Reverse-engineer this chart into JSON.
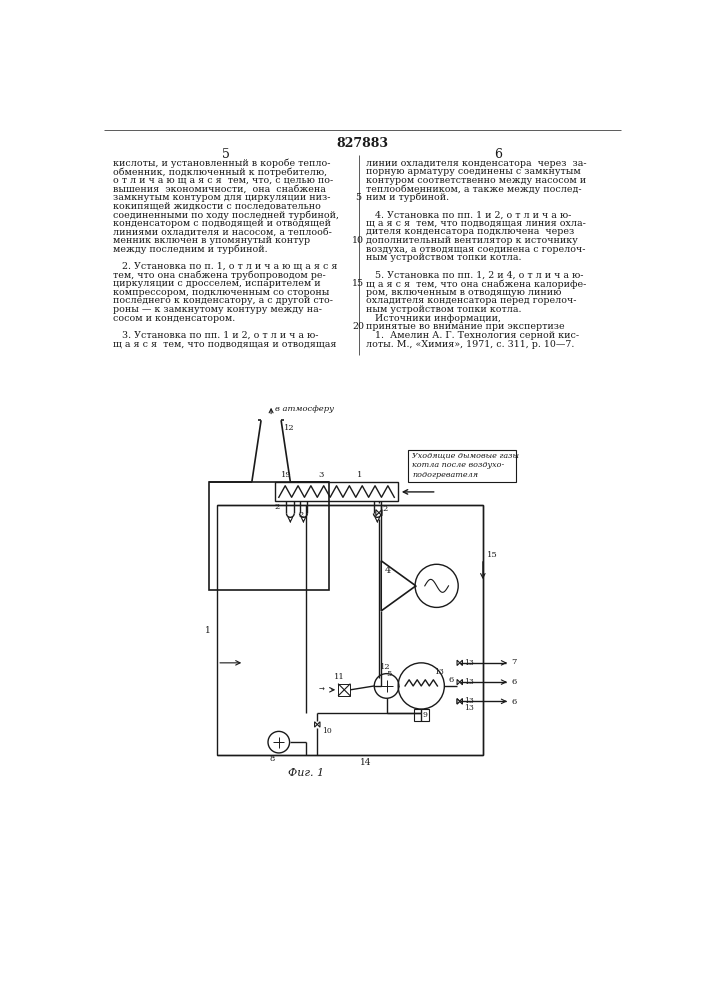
{
  "title": "827883",
  "fig_caption": "Фиг. 1",
  "bg_color": "#ffffff",
  "line_color": "#1a1a1a",
  "text_color": "#1a1a1a",
  "header_title": "827883",
  "page_left": "5",
  "page_right": "6",
  "left_text_lines": [
    "кислоты, и установленный в коробе тепло-",
    "обменник, подключенный к потребителю,",
    "о т л и ч а ю щ а я с я  тем, что, с целью по-",
    "вышения  экономичности,  она  снабжена",
    "замкнутым контуром для циркуляции низ-",
    "кокипящей жидкости с последовательно",
    "соединенными по ходу последней турбиной,",
    "конденсатором с подводящей и отводящей",
    "линиями охладителя и насосом, а теплооб-",
    "менник включен в упомянутый контур",
    "между последним и турбиной.",
    "",
    "   2. Установка по п. 1, о т л и ч а ю щ а я с я",
    "тем, что она снабжена трубопроводом ре-",
    "циркуляции с дросселем, испарителем и",
    "компрессором, подключенным со стороны",
    "последнего к конденсатору, а с другой сто-",
    "роны — к замкнутому контуру между на-",
    "сосом и конденсатором.",
    "",
    "   3. Установка по пп. 1 и 2, о т л и ч а ю-",
    "щ а я с я  тем, что подводящая и отводящая"
  ],
  "right_text_lines": [
    "линии охладителя конденсатора  через  за-",
    "порную арматуру соединены с замкнутым",
    "контуром соответственно между насосом и",
    "теплообменником, а также между послед-",
    "ним и турбиной.",
    "",
    "   4. Установка по пп. 1 и 2, о т л и ч а ю-",
    "щ а я с я  тем, что подводящая линия охла-",
    "дителя конденсатора подключена  через",
    "дополнительный вентилятор к источнику",
    "воздуха, а отводящая соединена с горелоч-",
    "ным устройством топки котла.",
    "",
    "   5. Установка по пп. 1, 2 и 4, о т л и ч а ю-",
    "щ а я с я  тем, что она снабжена калорифе-",
    "ром, включенным в отводящую линию",
    "охладителя конденсатора перед горелоч-",
    "ным устройством топки котла.",
    "   Источники информации,",
    "принятые во внимание при экспертизе",
    "   1.  Амелин А. Г. Технология серной кис-",
    "лоты. М., «Химия», 1971, с. 311, р. 10—7."
  ],
  "line_numbers": [
    [
      5,
      4
    ],
    [
      10,
      9
    ],
    [
      15,
      14
    ],
    [
      20,
      19
    ]
  ]
}
